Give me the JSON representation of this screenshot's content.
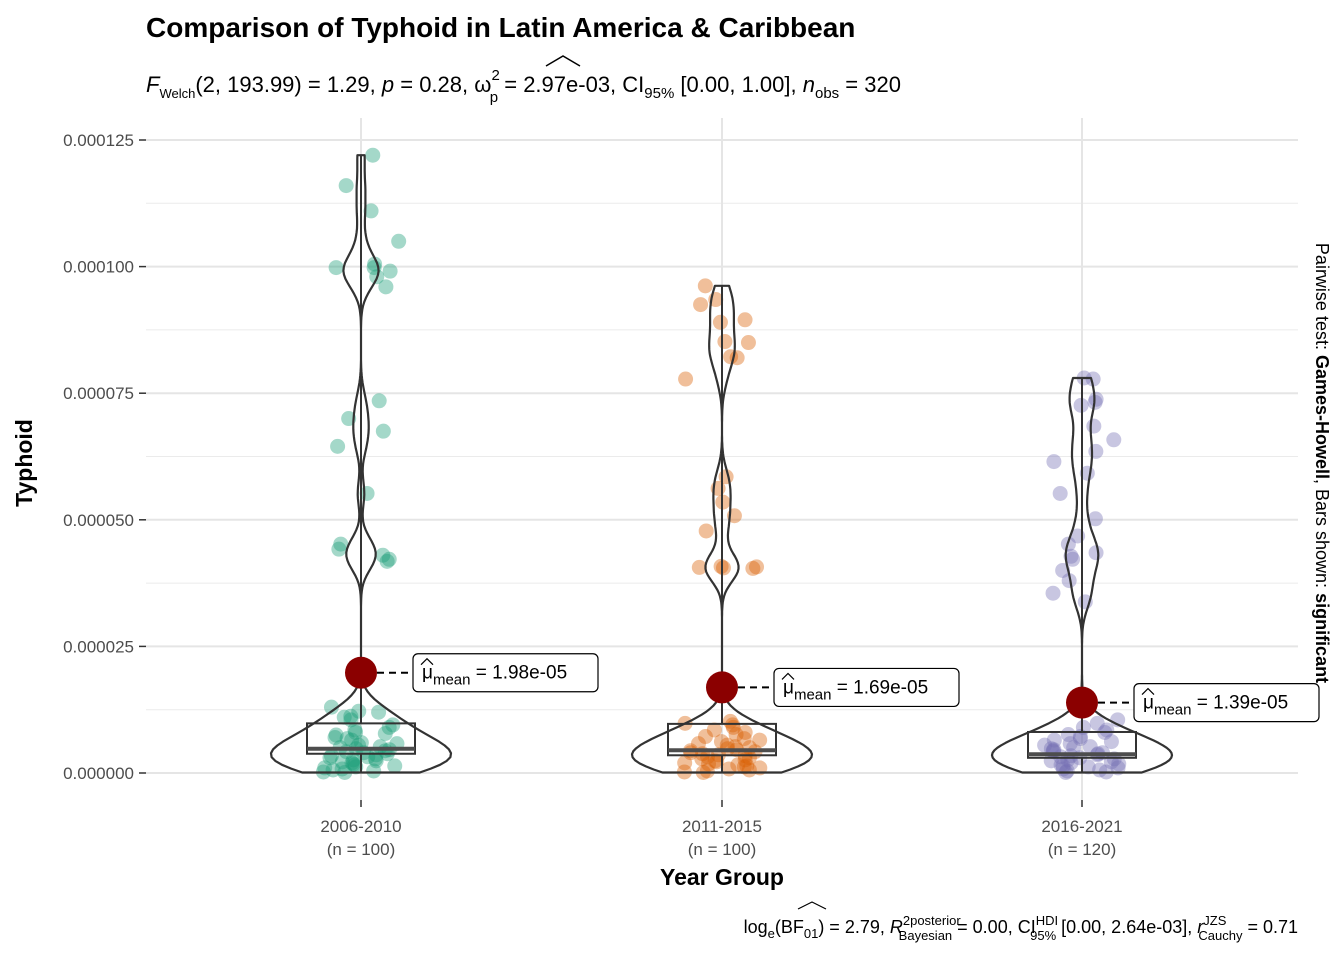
{
  "chart_data": {
    "type": "violin-box-scatter",
    "title": "Comparison of Typhoid in Latin America & Caribbean",
    "subtitle": {
      "stat": "F",
      "stat_sub": "Welch",
      "df": "(2, 193.99)",
      "stat_value": " = 1.29, ",
      "p_label": "p",
      "p_value": " = 0.28, ",
      "es_symbol": "ω",
      "es_sup": "2",
      "es_sub": "p",
      "es_value": " = 2.97e-03, CI",
      "ci_sub": "95%",
      "ci_value": " [0.00, 1.00], ",
      "n_label": "n",
      "n_sub": "obs",
      "n_value": " = 320"
    },
    "xlabel": "Year Group",
    "ylabel": "Typhoid",
    "ylim": [
      -4.5e-06,
      0.000127
    ],
    "yticks": [
      {
        "value": 0.000125,
        "label": "0.000125"
      },
      {
        "value": 0.0001,
        "label": "0.000100"
      },
      {
        "value": 7.5e-05,
        "label": "0.000075"
      },
      {
        "value": 5e-05,
        "label": "0.000050"
      },
      {
        "value": 2.5e-05,
        "label": "0.000025"
      },
      {
        "value": 0,
        "label": "0.000000"
      }
    ],
    "grid": true,
    "side_label": {
      "prefix": "Pairwise test: ",
      "test": "Games-Howell",
      "middle": ", Bars shown: ",
      "shown": "significant"
    },
    "caption": {
      "a": "log",
      "a_sub": "e",
      "b": "(BF",
      "b_sub": "01",
      "c": ") = 2.79, ",
      "r2": "R",
      "r2_sup": "2",
      "r2_sup2": "posterior",
      "r2_sub": "Bayesian",
      "d": " = 0.00, CI",
      "ci_sup": "HDI",
      "ci_sub": "95%",
      "e": " [0.00, 2.64e-03], ",
      "r": "r",
      "r_sup": "JZS",
      "r_sub": "Cauchy",
      "f": " = 0.71"
    },
    "groups": [
      {
        "category": "2006-2010",
        "n_label": "(n = 100)",
        "color": "#1b9e77",
        "mean": 1.98e-05,
        "mean_label": "1.98e-05",
        "box": {
          "q1": 3.8e-06,
          "median": 4.8e-06,
          "q3": 9.8e-06,
          "min": 3e-07,
          "max": 0.000122
        },
        "points": [
          0.000122,
          0.000116,
          0.000111,
          0.000105,
          0.0001005,
          9.98e-05,
          9.98e-05,
          9.91e-05,
          9.8e-05,
          9.6e-05,
          7.35e-05,
          7e-05,
          6.75e-05,
          6.45e-05,
          5.52e-05,
          4.52e-05,
          4.42e-05,
          4.3e-05,
          4.22e-05,
          4.18e-05,
          1.3e-05,
          1.22e-05,
          1.2e-05,
          1.12e-05,
          1.1e-05,
          1.05e-05,
          9.5e-06,
          9e-06,
          8.5e-06,
          8e-06,
          7.8e-06,
          7.5e-06,
          7e-06,
          6.8e-06,
          6.5e-06,
          6e-06,
          5.8e-06,
          5.5e-06,
          5.2e-06,
          5e-06,
          4.8e-06,
          4.6e-06,
          4.4e-06,
          4.2e-06,
          4e-06,
          3.8e-06,
          3.6e-06,
          3.4e-06,
          3.2e-06,
          3e-06,
          2.8e-06,
          2.6e-06,
          2.4e-06,
          2.2e-06,
          2e-06,
          1.8e-06,
          1.6e-06,
          1.4e-06,
          1.2e-06,
          1e-06,
          8e-07,
          6e-07,
          4e-07,
          2e-07,
          1e-07
        ]
      },
      {
        "category": "2011-2015",
        "n_label": "(n = 100)",
        "color": "#d95f02",
        "mean": 1.69e-05,
        "mean_label": "1.69e-05",
        "box": {
          "q1": 3.5e-06,
          "median": 4.5e-06,
          "q3": 9.7e-06,
          "min": 3e-07,
          "max": 9.62e-05
        },
        "points": [
          9.62e-05,
          9.35e-05,
          9.25e-05,
          8.95e-05,
          8.9e-05,
          8.52e-05,
          8.5e-05,
          8.22e-05,
          8.2e-05,
          7.78e-05,
          5.85e-05,
          5.62e-05,
          5.35e-05,
          5.08e-05,
          4.78e-05,
          4.08e-05,
          4.07e-05,
          4.06e-05,
          4.05e-05,
          4.04e-05,
          1.02e-05,
          9.8e-06,
          9.5e-06,
          9e-06,
          8.5e-06,
          8e-06,
          7.6e-06,
          7.2e-06,
          6.8e-06,
          6.5e-06,
          6.2e-06,
          5.8e-06,
          5.5e-06,
          5.2e-06,
          5e-06,
          4.8e-06,
          4.6e-06,
          4.4e-06,
          4.2e-06,
          4e-06,
          3.8e-06,
          3.6e-06,
          3.4e-06,
          3.2e-06,
          3e-06,
          2.8e-06,
          2.6e-06,
          2.4e-06,
          2.2e-06,
          2e-06,
          1.8e-06,
          1.6e-06,
          1.4e-06,
          1.2e-06,
          1e-06,
          8e-07,
          6e-07,
          4e-07,
          2e-07,
          1e-07
        ]
      },
      {
        "category": "2016-2021",
        "n_label": "(n = 120)",
        "color": "#7570b3",
        "mean": 1.39e-05,
        "mean_label": "1.39e-05",
        "box": {
          "q1": 3e-06,
          "median": 3.7e-06,
          "q3": 8.1e-06,
          "min": 3e-07,
          "max": 7.8e-05
        },
        "points": [
          7.8e-05,
          7.78e-05,
          7.38e-05,
          7.32e-05,
          7.26e-05,
          6.85e-05,
          6.58e-05,
          6.35e-05,
          6.15e-05,
          5.92e-05,
          5.52e-05,
          5.02e-05,
          4.68e-05,
          4.52e-05,
          4.35e-05,
          4.28e-05,
          4.22e-05,
          4e-05,
          3.8e-05,
          3.55e-05,
          3.38e-05,
          1.05e-05,
          9.8e-06,
          9e-06,
          8.5e-06,
          8e-06,
          7.6e-06,
          7.2e-06,
          6.8e-06,
          6.5e-06,
          6.2e-06,
          5.8e-06,
          5.5e-06,
          5.2e-06,
          5e-06,
          4.8e-06,
          4.6e-06,
          4.4e-06,
          4.2e-06,
          4e-06,
          3.8e-06,
          3.6e-06,
          3.4e-06,
          3.2e-06,
          3e-06,
          2.8e-06,
          2.6e-06,
          2.4e-06,
          2.2e-06,
          2e-06,
          1.8e-06,
          1.6e-06,
          1.4e-06,
          1.2e-06,
          1e-06,
          8e-07,
          6e-07,
          4e-07,
          2e-07,
          1e-07
        ]
      }
    ]
  }
}
